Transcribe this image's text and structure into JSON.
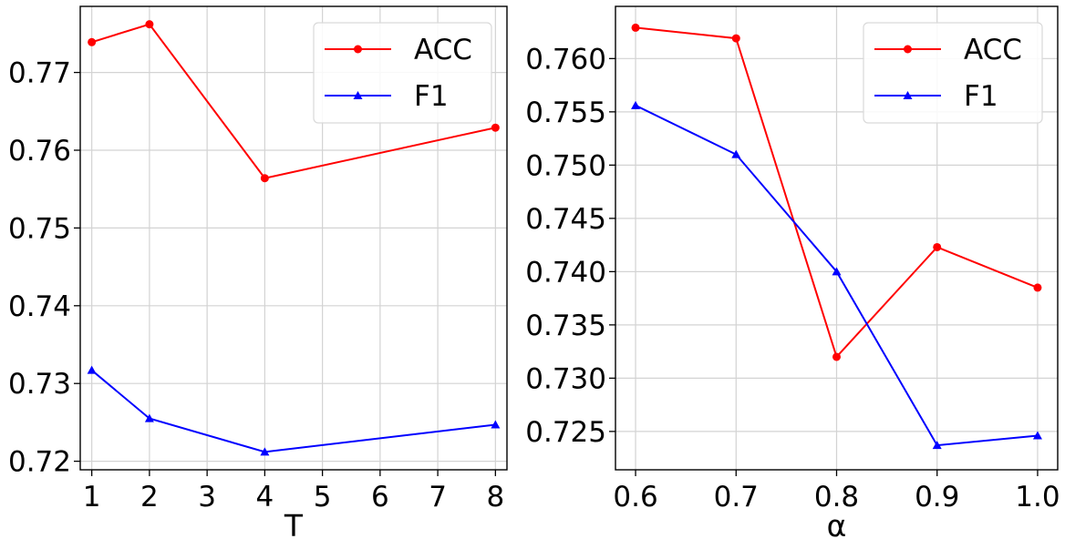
{
  "chart_data": [
    {
      "type": "line",
      "xlabel": "T",
      "ylabel": "",
      "x": [
        1,
        2,
        4,
        8
      ],
      "xticks": [
        "1",
        "2",
        "3",
        "4",
        "5",
        "6",
        "7",
        "8"
      ],
      "yticks": [
        "0.72",
        "0.73",
        "0.74",
        "0.75",
        "0.76",
        "0.77"
      ],
      "xlim": [
        0.8,
        8.2
      ],
      "ylim": [
        0.7189,
        0.7785
      ],
      "grid": true,
      "legend_placement": "top-right",
      "series": [
        {
          "name": "ACC",
          "values": [
            0.7739,
            0.7762,
            0.7564,
            0.7629
          ],
          "color": "#ff0000",
          "marker": "circle"
        },
        {
          "name": "F1",
          "values": [
            0.7317,
            0.7255,
            0.7212,
            0.7247
          ],
          "color": "#0000ff",
          "marker": "triangle"
        }
      ]
    },
    {
      "type": "line",
      "xlabel": "α",
      "ylabel": "",
      "x": [
        0.6,
        0.7,
        0.8,
        0.9,
        1.0
      ],
      "xticks": [
        "0.6",
        "0.7",
        "0.8",
        "0.9",
        "1.0"
      ],
      "yticks": [
        "0.725",
        "0.730",
        "0.735",
        "0.740",
        "0.745",
        "0.750",
        "0.755",
        "0.760"
      ],
      "xlim": [
        0.58,
        1.02
      ],
      "ylim": [
        0.7214,
        0.7649
      ],
      "grid": true,
      "legend_placement": "top-right",
      "series": [
        {
          "name": "ACC",
          "values": [
            0.7629,
            0.7619,
            0.732,
            0.7423,
            0.7385
          ],
          "color": "#ff0000",
          "marker": "circle"
        },
        {
          "name": "F1",
          "values": [
            0.7556,
            0.751,
            0.74,
            0.7237,
            0.7246
          ],
          "color": "#0000ff",
          "marker": "triangle"
        }
      ]
    }
  ]
}
